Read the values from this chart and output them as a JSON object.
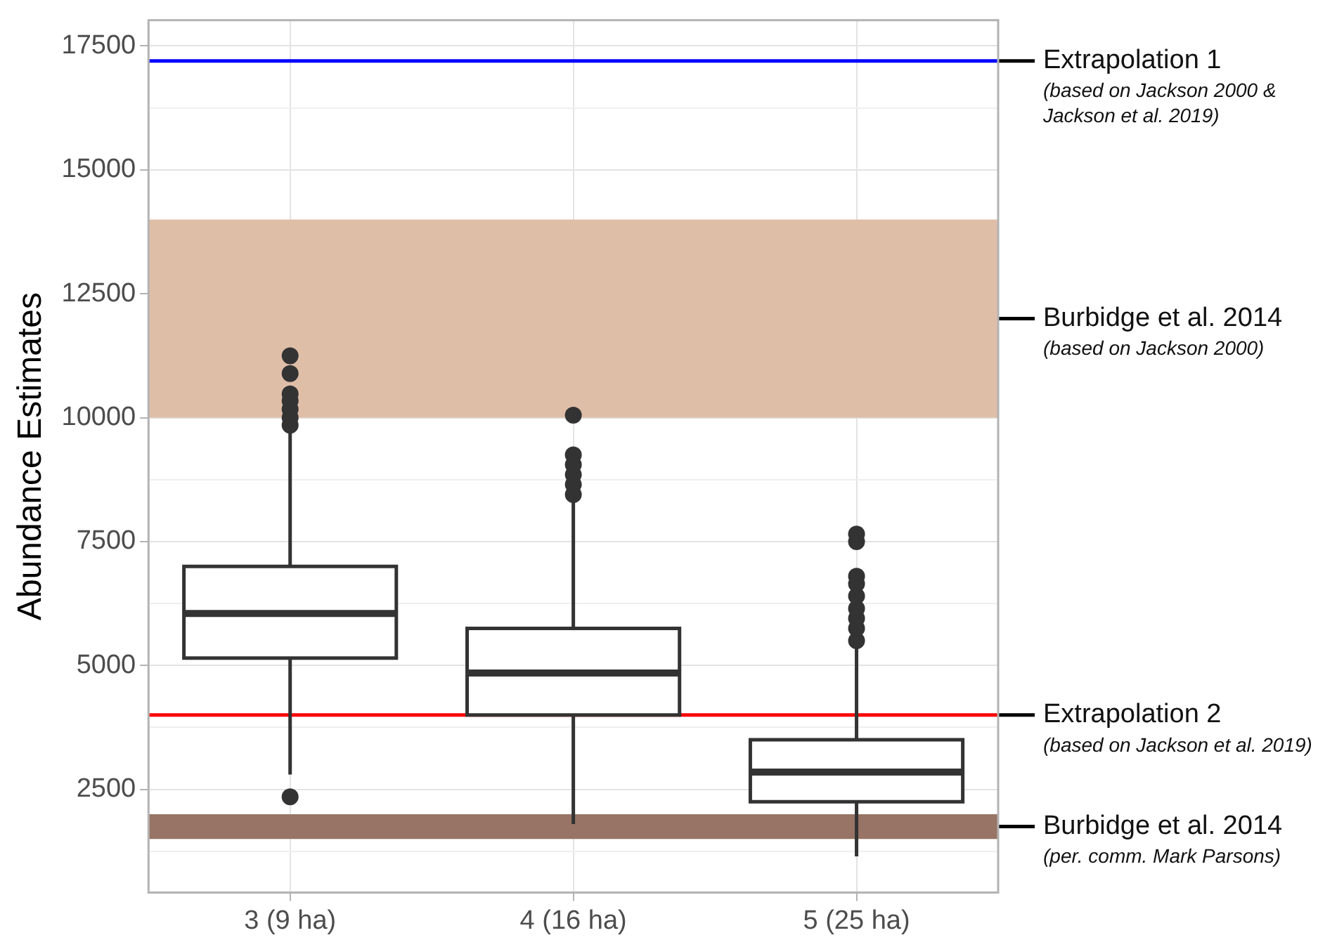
{
  "chart_data": {
    "type": "box",
    "ylabel": "Abundance Estimates",
    "categories": [
      "3 (9 ha)",
      "4 (16 ha)",
      "5 (25 ha)"
    ],
    "boxes": [
      {
        "low": 2800,
        "q1": 5150,
        "median": 6050,
        "q3": 7000,
        "high": 9750,
        "outliers": [
          2350,
          9850,
          10000,
          10170,
          10340,
          10480,
          10890,
          11250
        ]
      },
      {
        "low": 1800,
        "q1": 4000,
        "median": 4850,
        "q3": 5750,
        "high": 8300,
        "outliers": [
          8450,
          8650,
          8850,
          9050,
          9250,
          10050
        ]
      },
      {
        "low": 1150,
        "q1": 2250,
        "median": 2850,
        "q3": 3500,
        "high": 5400,
        "outliers": [
          5500,
          5750,
          5950,
          6150,
          6400,
          6650,
          6800,
          7500,
          7650
        ]
      }
    ],
    "ylim": [
      420,
      18020
    ],
    "yticks": [
      {
        "value": 1250,
        "label": null
      },
      2500,
      {
        "value": 3750,
        "label": null
      },
      5000,
      {
        "value": 6250,
        "label": null
      },
      7500,
      {
        "value": 8750,
        "label": null
      },
      10000,
      12500,
      15000,
      {
        "value": 16250,
        "label": null
      },
      17500
    ],
    "grid": true,
    "legend": false,
    "ref_lines": [
      {
        "axis": "y",
        "value": 17200,
        "label": "Extrapolation 1",
        "color": "#0000ff"
      },
      {
        "axis": "y",
        "value": 4000,
        "label": "Extrapolation 2",
        "color": "#ff0000"
      }
    ],
    "bands": [
      {
        "axis": "y",
        "from": 10000,
        "to": 14000,
        "label": "Burbidge et al. 2014",
        "color": "#dfbea8"
      },
      {
        "axis": "y",
        "from": 1500,
        "to": 2000,
        "label": "Burbidge et al. 2014",
        "color": "#977466"
      }
    ],
    "annotations": [
      "(based on Jackson 2000 & Jackson et al. 2019)",
      "(based on Jackson 2000)",
      "(based on Jackson et al. 2019)",
      "(per. comm. Mark Parsons)"
    ]
  }
}
